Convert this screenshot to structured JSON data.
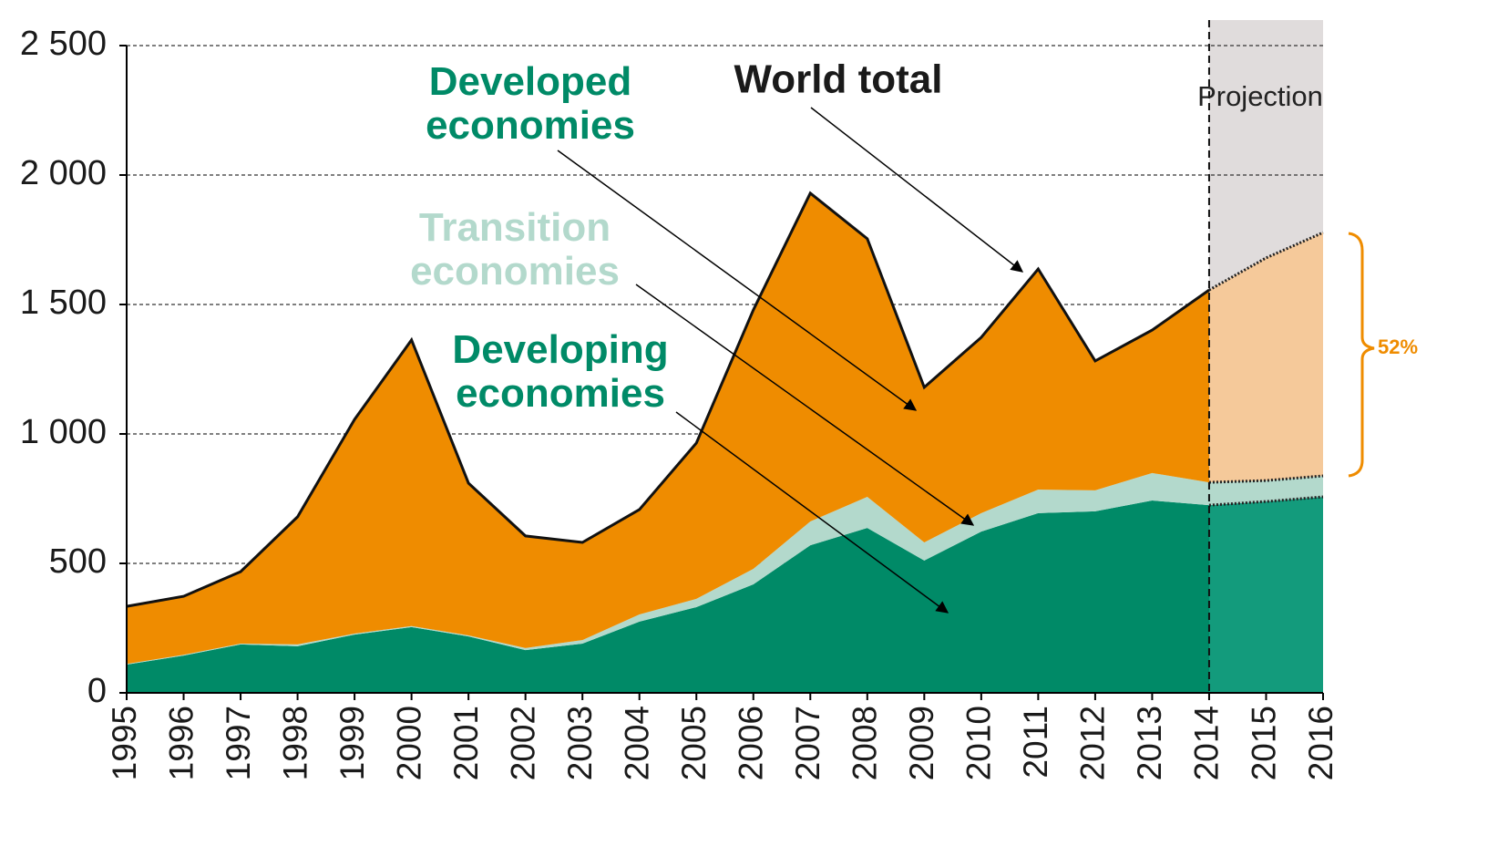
{
  "chart_data": {
    "type": "stacked-area",
    "categories": [
      "1995",
      "1996",
      "1997",
      "1998",
      "1999",
      "2000",
      "2001",
      "2002",
      "2003",
      "2004",
      "2005",
      "2006",
      "2007",
      "2008",
      "2009",
      "2010",
      "2011",
      "2012",
      "2013",
      "2014",
      "2015",
      "2016"
    ],
    "series": [
      {
        "name": "Developing economies",
        "color": "#008a67",
        "projection_color": "#139b7c",
        "values": [
          109,
          144,
          187,
          180,
          225,
          254,
          218,
          165,
          190,
          275,
          331,
          419,
          570,
          637,
          511,
          623,
          694,
          701,
          743,
          725,
          739,
          757
        ]
      },
      {
        "name": "Transition economies",
        "color": "#b3d9cc",
        "projection_color": "#b3d9cc",
        "values": [
          3,
          3,
          3,
          7,
          4,
          4,
          4,
          8,
          14,
          28,
          32,
          60,
          92,
          120,
          70,
          71,
          91,
          81,
          106,
          88,
          81,
          81
        ]
      },
      {
        "name": "Developed economies",
        "color": "#ef8c00",
        "projection_color": "#f5c99a",
        "values": [
          222,
          226,
          278,
          493,
          827,
          1105,
          588,
          433,
          377,
          405,
          602,
          1000,
          1268,
          997,
          599,
          679,
          852,
          500,
          552,
          743,
          860,
          940
        ]
      }
    ],
    "total_label": "World total",
    "projection_label": "Projection",
    "projection_start": "2014",
    "projection_shade": "#e0dcdc",
    "annotation": "52%",
    "ylim": [
      0,
      2500
    ],
    "yticks": [
      0,
      500,
      {
        "value": 1000,
        "label": "1 000"
      },
      {
        "value": 1500,
        "label": "1 500"
      },
      {
        "value": 2000,
        "label": "2 000"
      },
      {
        "value": 2500,
        "label": "2 500"
      }
    ],
    "grid": true
  }
}
